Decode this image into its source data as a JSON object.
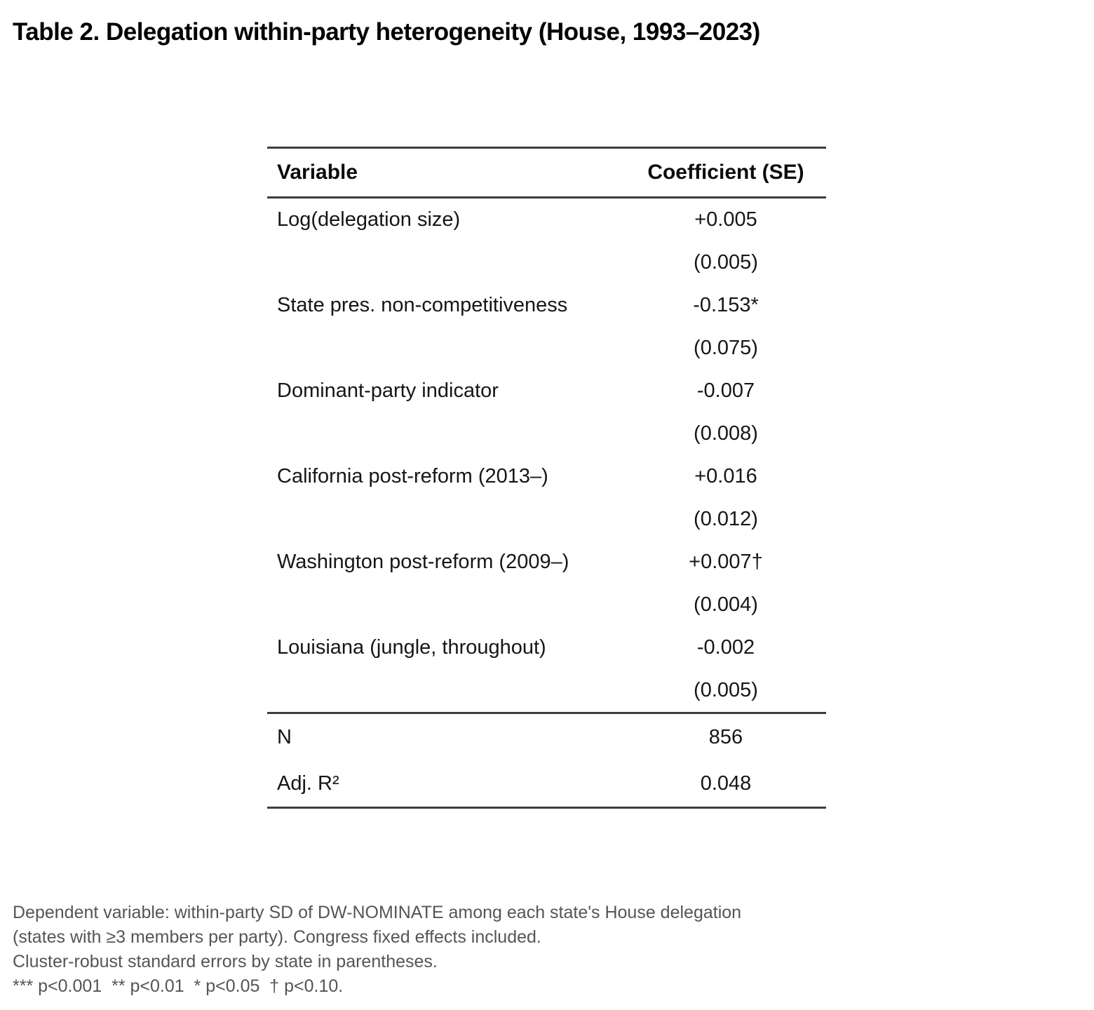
{
  "title": "Table 2. Delegation within-party heterogeneity (House, 1993–2023)",
  "table": {
    "headers": {
      "variable": "Variable",
      "coefficient": "Coefficient (SE)"
    },
    "rows": [
      {
        "variable": "Log(delegation size)",
        "coef": "+0.005",
        "se": "(0.005)"
      },
      {
        "variable": "State pres. non-competitiveness",
        "coef": "-0.153*",
        "se": "(0.075)"
      },
      {
        "variable": "Dominant-party indicator",
        "coef": "-0.007",
        "se": "(0.008)"
      },
      {
        "variable": "California post-reform (2013–)",
        "coef": "+0.016",
        "se": "(0.012)"
      },
      {
        "variable": "Washington post-reform (2009–)",
        "coef": "+0.007†",
        "se": "(0.004)"
      },
      {
        "variable": "Louisiana (jungle, throughout)",
        "coef": "-0.002",
        "se": "(0.005)"
      }
    ],
    "stats": [
      {
        "label": "N",
        "value": "856"
      },
      {
        "label": "Adj. R²",
        "value": "0.048"
      }
    ]
  },
  "footnotes": [
    "Dependent variable: within-party SD of DW-NOMINATE among each state's House delegation",
    "(states with ≥3 members per party). Congress fixed effects included.",
    "Cluster-robust standard errors by state in parentheses.",
    "*** p<0.001  ** p<0.01  * p<0.05  † p<0.10."
  ]
}
